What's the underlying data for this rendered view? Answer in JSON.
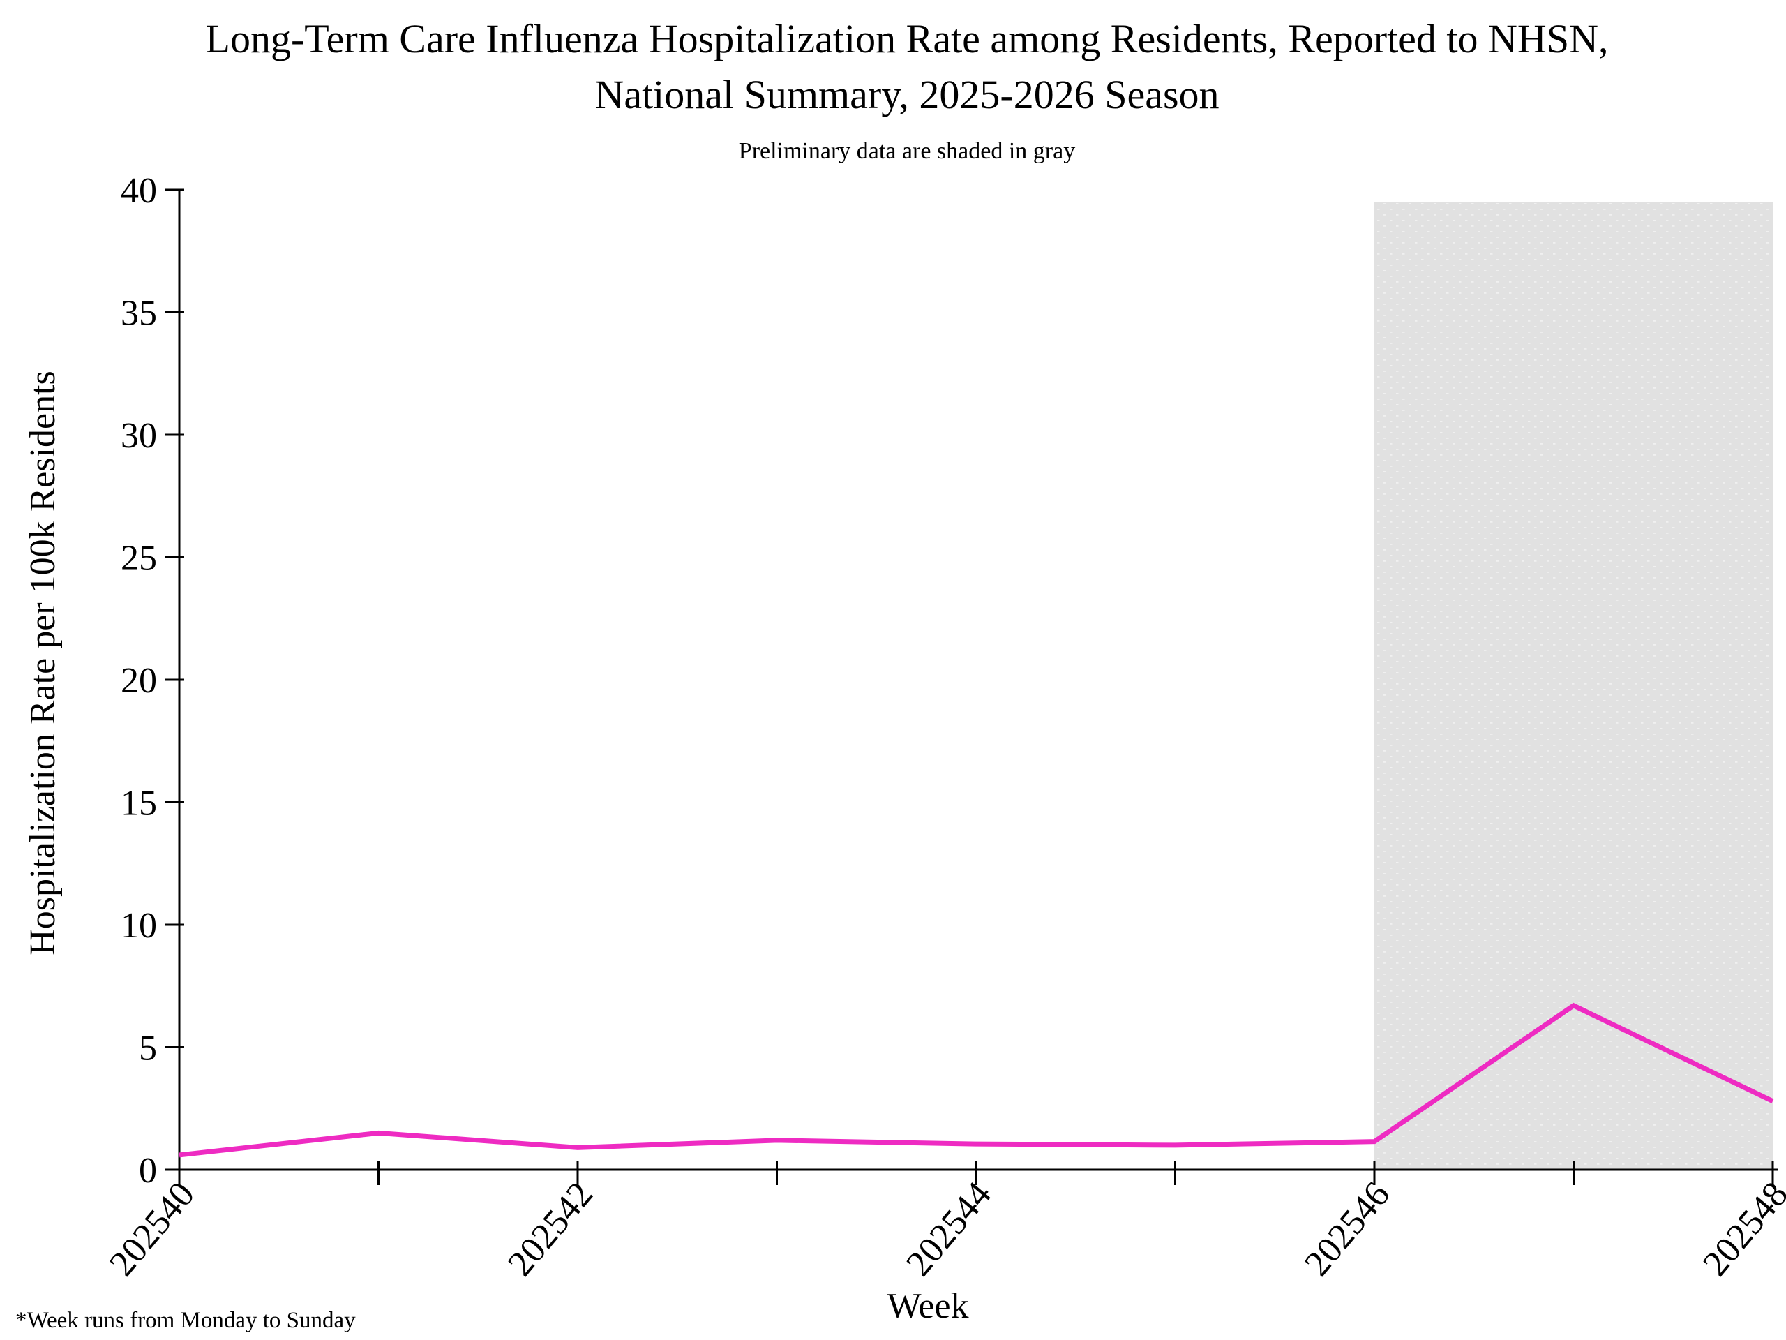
{
  "title": {
    "line1": "Long-Term Care Influenza Hospitalization Rate among Residents, Reported to NHSN,",
    "line2": "National Summary, 2025-2026 Season"
  },
  "subtitle": "Preliminary data are shaded in gray",
  "footnote": "*Week runs from Monday to Sunday",
  "chart_data": {
    "type": "line",
    "title": "Long-Term Care Influenza Hospitalization Rate among Residents, Reported to NHSN, National Summary, 2025-2026 Season",
    "xlabel": "Week",
    "ylabel": "Hospitalization Rate per 100k Residents",
    "x": [
      202540,
      202541,
      202542,
      202543,
      202544,
      202545,
      202546,
      202547,
      202548
    ],
    "series": [
      {
        "name": "Hospitalization rate per 100k residents",
        "color": "#EE2BC2",
        "values": [
          0.6,
          1.5,
          0.9,
          1.2,
          1.05,
          1.0,
          1.15,
          6.7,
          2.8
        ]
      }
    ],
    "ylim": [
      0,
      40
    ],
    "yticks": [
      0,
      5,
      10,
      15,
      20,
      25,
      30,
      35,
      40
    ],
    "xticks_labeled": [
      202540,
      202542,
      202544,
      202546,
      202548
    ],
    "grid": false,
    "legend": "none",
    "shaded_region": {
      "label": "Preliminary data",
      "from": 202546,
      "to": 202548,
      "top_value": 39.5,
      "color": "#e1e1e1"
    },
    "axis_color": "#000000"
  }
}
